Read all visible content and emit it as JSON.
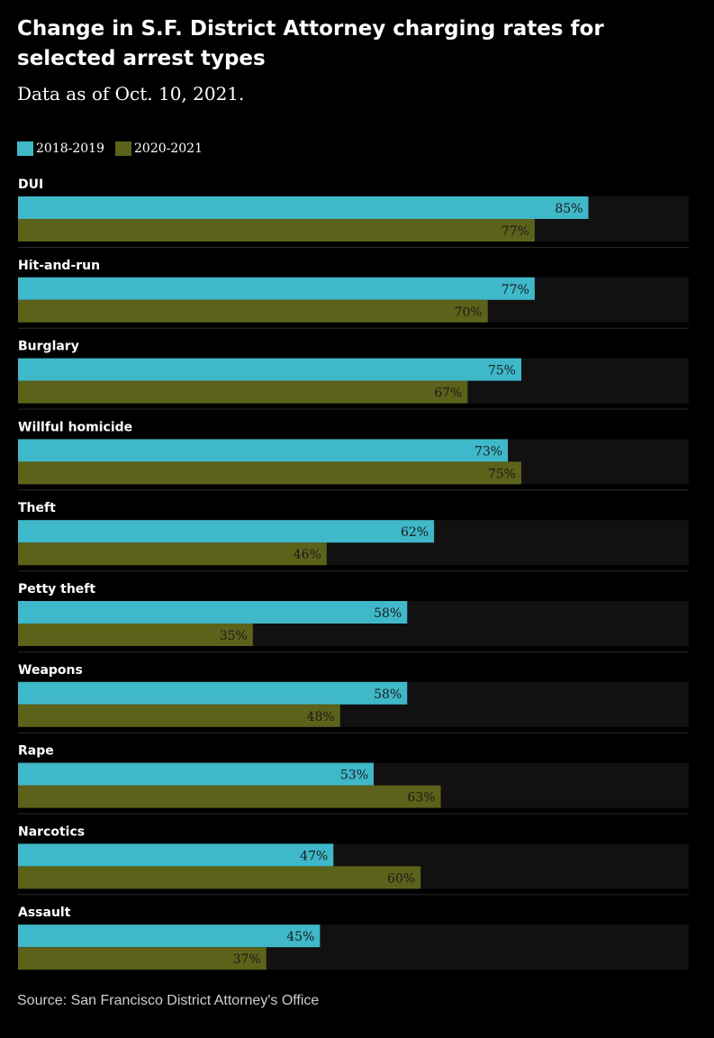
{
  "title": "Change in S.F. District Attorney charging rates for selected arrest types",
  "subtitle": "Data as of Oct. 10, 2021.",
  "source": "Source: San Francisco District Attorney's Office",
  "colors": {
    "series_2018_2019": "#3fb8c9",
    "series_2020_2021": "#5c621a",
    "track": "#111111",
    "divider": "#2a2a2a"
  },
  "chart_data": {
    "type": "bar",
    "orientation": "horizontal",
    "xlim": [
      0,
      100
    ],
    "value_suffix": "%",
    "legend": "top-left",
    "categories": [
      "DUI",
      "Hit-and-run",
      "Burglary",
      "Willful homicide",
      "Theft",
      "Petty theft",
      "Weapons",
      "Rape",
      "Narcotics",
      "Assault"
    ],
    "series": [
      {
        "name": "2018-2019",
        "values": [
          85,
          77,
          75,
          73,
          62,
          58,
          58,
          53,
          47,
          45
        ]
      },
      {
        "name": "2020-2021",
        "values": [
          77,
          70,
          67,
          75,
          46,
          35,
          48,
          63,
          60,
          37
        ]
      }
    ]
  }
}
